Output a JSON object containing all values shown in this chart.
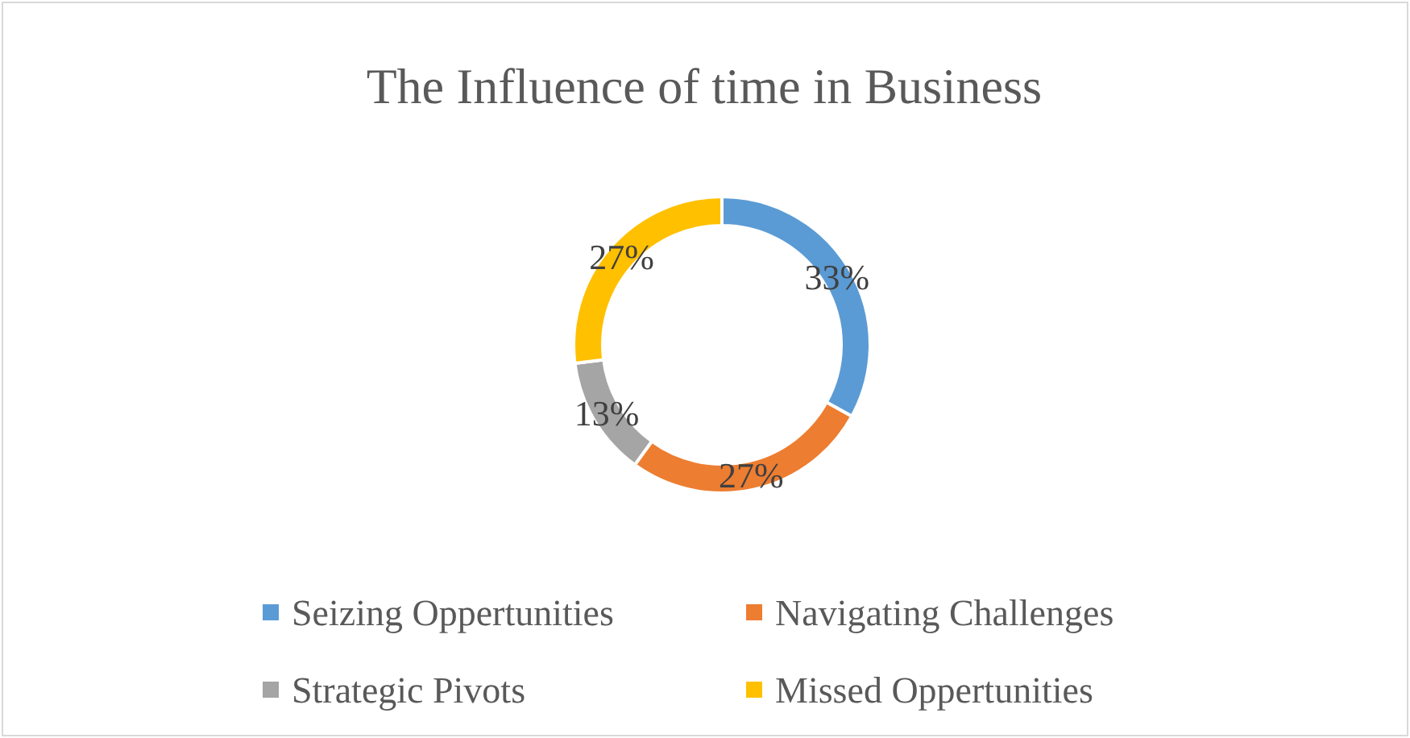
{
  "chart_data": {
    "type": "donut",
    "title": "The Influence of time in Business",
    "categories": [
      "Seizing Oppertunities",
      "Navigating Challenges",
      "Strategic Pivots",
      "Missed Oppertunities"
    ],
    "values": [
      33,
      27,
      13,
      27
    ],
    "colors": [
      "#5b9bd5",
      "#ed7d31",
      "#a5a5a5",
      "#ffc000"
    ],
    "value_labels": [
      "33%",
      "27%",
      "13%",
      "27%"
    ],
    "legend": "bottom"
  }
}
